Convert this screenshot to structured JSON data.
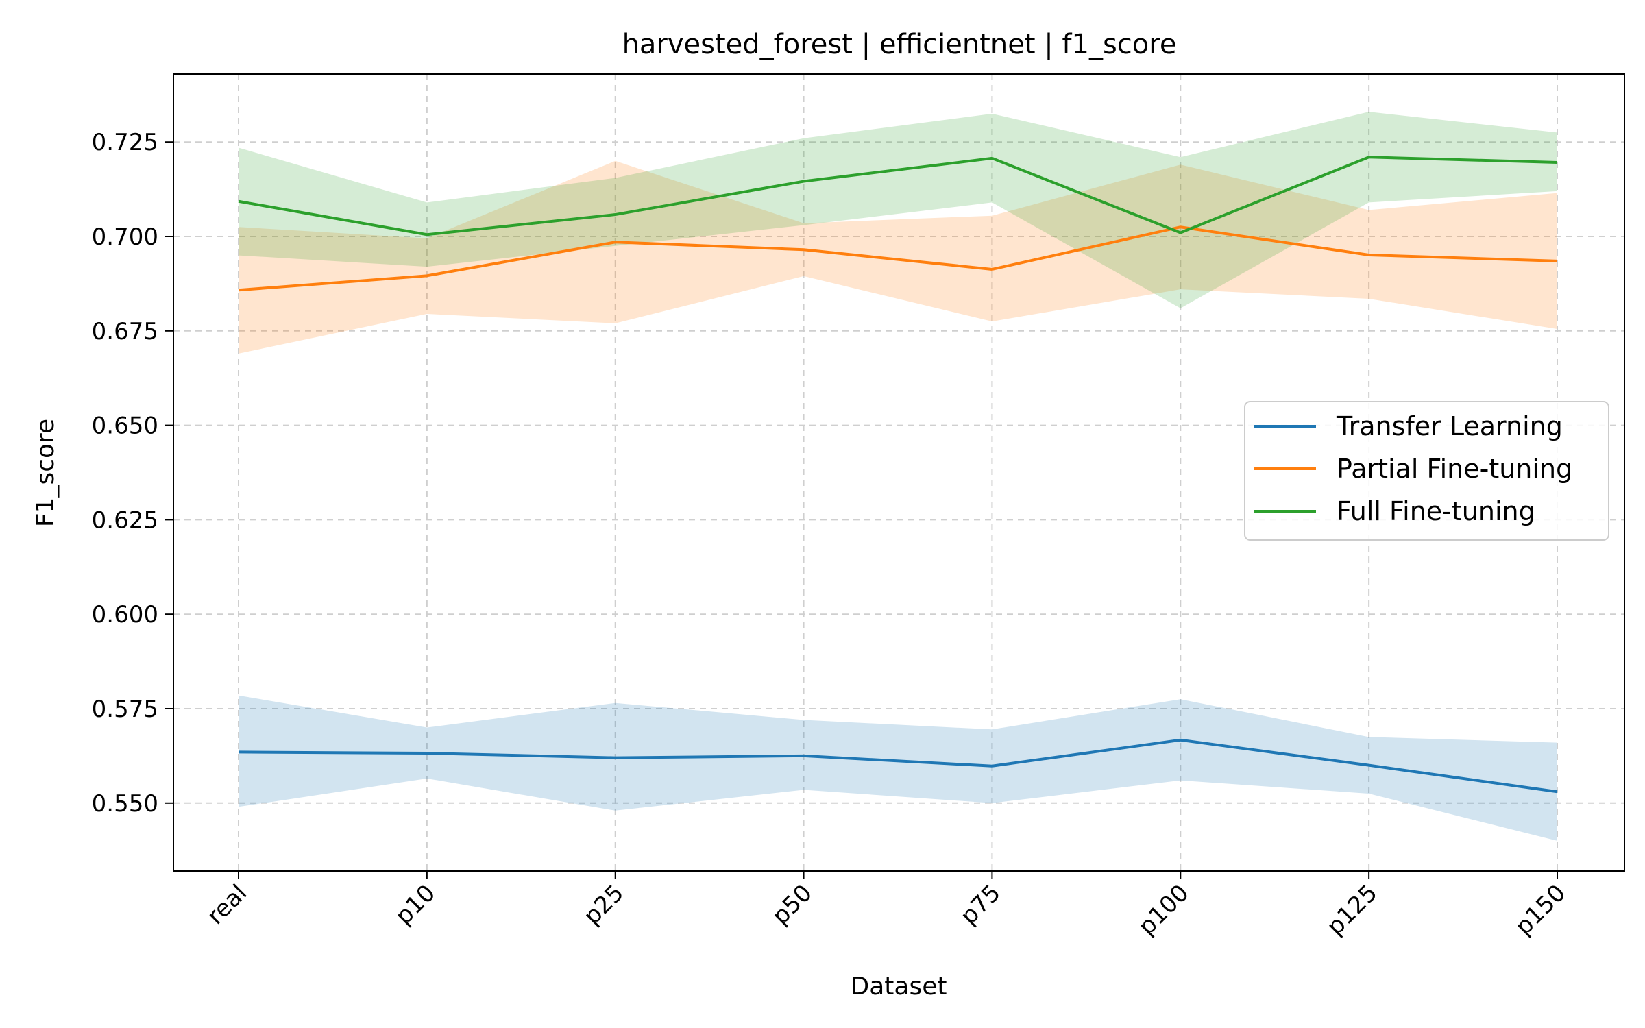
{
  "chart_data": {
    "type": "line",
    "title": "harvested_forest | efficientnet | f1_score",
    "xlabel": "Dataset",
    "ylabel": "F1_score",
    "categories": [
      "real",
      "p10",
      "p25",
      "p50",
      "p75",
      "p100",
      "p125",
      "p150"
    ],
    "ylim": [
      0.532,
      0.743
    ],
    "yticks": [
      "0.550",
      "0.575",
      "0.600",
      "0.625",
      "0.650",
      "0.675",
      "0.700",
      "0.725"
    ],
    "grid": true,
    "legend_position": "center-right",
    "series": [
      {
        "name": "Transfer Learning",
        "color": "#1f77b4",
        "values": [
          0.5635,
          0.5632,
          0.562,
          0.5625,
          0.5598,
          0.5667,
          0.56,
          0.553
        ],
        "lower": [
          0.549,
          0.5565,
          0.548,
          0.5535,
          0.55,
          0.556,
          0.5525,
          0.54
        ],
        "upper": [
          0.5785,
          0.57,
          0.5765,
          0.572,
          0.5695,
          0.5775,
          0.5675,
          0.566
        ]
      },
      {
        "name": "Partial Fine-tuning",
        "color": "#ff7f0e",
        "values": [
          0.6858,
          0.6896,
          0.6985,
          0.6965,
          0.6913,
          0.7025,
          0.6951,
          0.6935
        ],
        "lower": [
          0.669,
          0.6795,
          0.677,
          0.6895,
          0.6775,
          0.686,
          0.6835,
          0.6755
        ],
        "upper": [
          0.7025,
          0.6995,
          0.72,
          0.7035,
          0.7055,
          0.719,
          0.707,
          0.7115
        ]
      },
      {
        "name": "Full Fine-tuning",
        "color": "#2ca02c",
        "values": [
          0.7093,
          0.7005,
          0.7058,
          0.7146,
          0.7207,
          0.701,
          0.721,
          0.7196
        ],
        "lower": [
          0.695,
          0.692,
          0.6975,
          0.703,
          0.709,
          0.681,
          0.709,
          0.712
        ],
        "upper": [
          0.7235,
          0.709,
          0.7155,
          0.726,
          0.7325,
          0.721,
          0.733,
          0.7275
        ]
      }
    ]
  }
}
